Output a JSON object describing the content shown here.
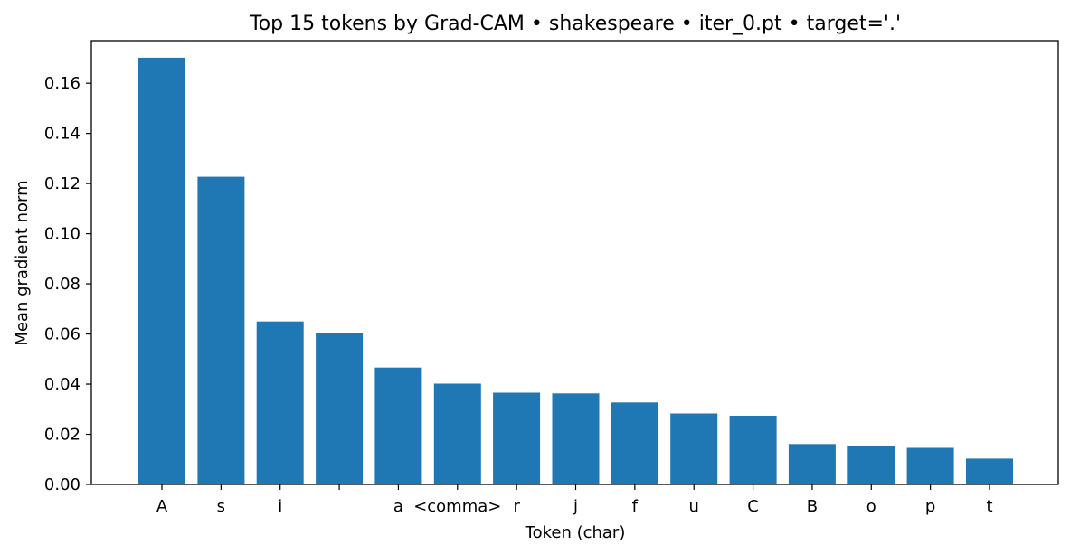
{
  "chart_data": {
    "type": "bar",
    "title": "Top 15 tokens by Grad-CAM • shakespeare • iter_0.pt • target='.'",
    "xlabel": "Token (char)",
    "ylabel": "Mean gradient norm",
    "categories": [
      "A",
      "s",
      "i",
      " ",
      "a",
      "<comma>",
      "r",
      "j",
      "f",
      "u",
      "C",
      "B",
      "o",
      "p",
      "t"
    ],
    "values": [
      0.1702,
      0.1227,
      0.065,
      0.0604,
      0.0466,
      0.0402,
      0.0366,
      0.0363,
      0.0327,
      0.0283,
      0.0274,
      0.0161,
      0.0154,
      0.0146,
      0.0103
    ],
    "yticks": [
      "0.00",
      "0.02",
      "0.04",
      "0.06",
      "0.08",
      "0.10",
      "0.12",
      "0.14",
      "0.16"
    ],
    "ylim": [
      0,
      0.177
    ],
    "grid": false,
    "bar_color": "#1f77b4"
  }
}
